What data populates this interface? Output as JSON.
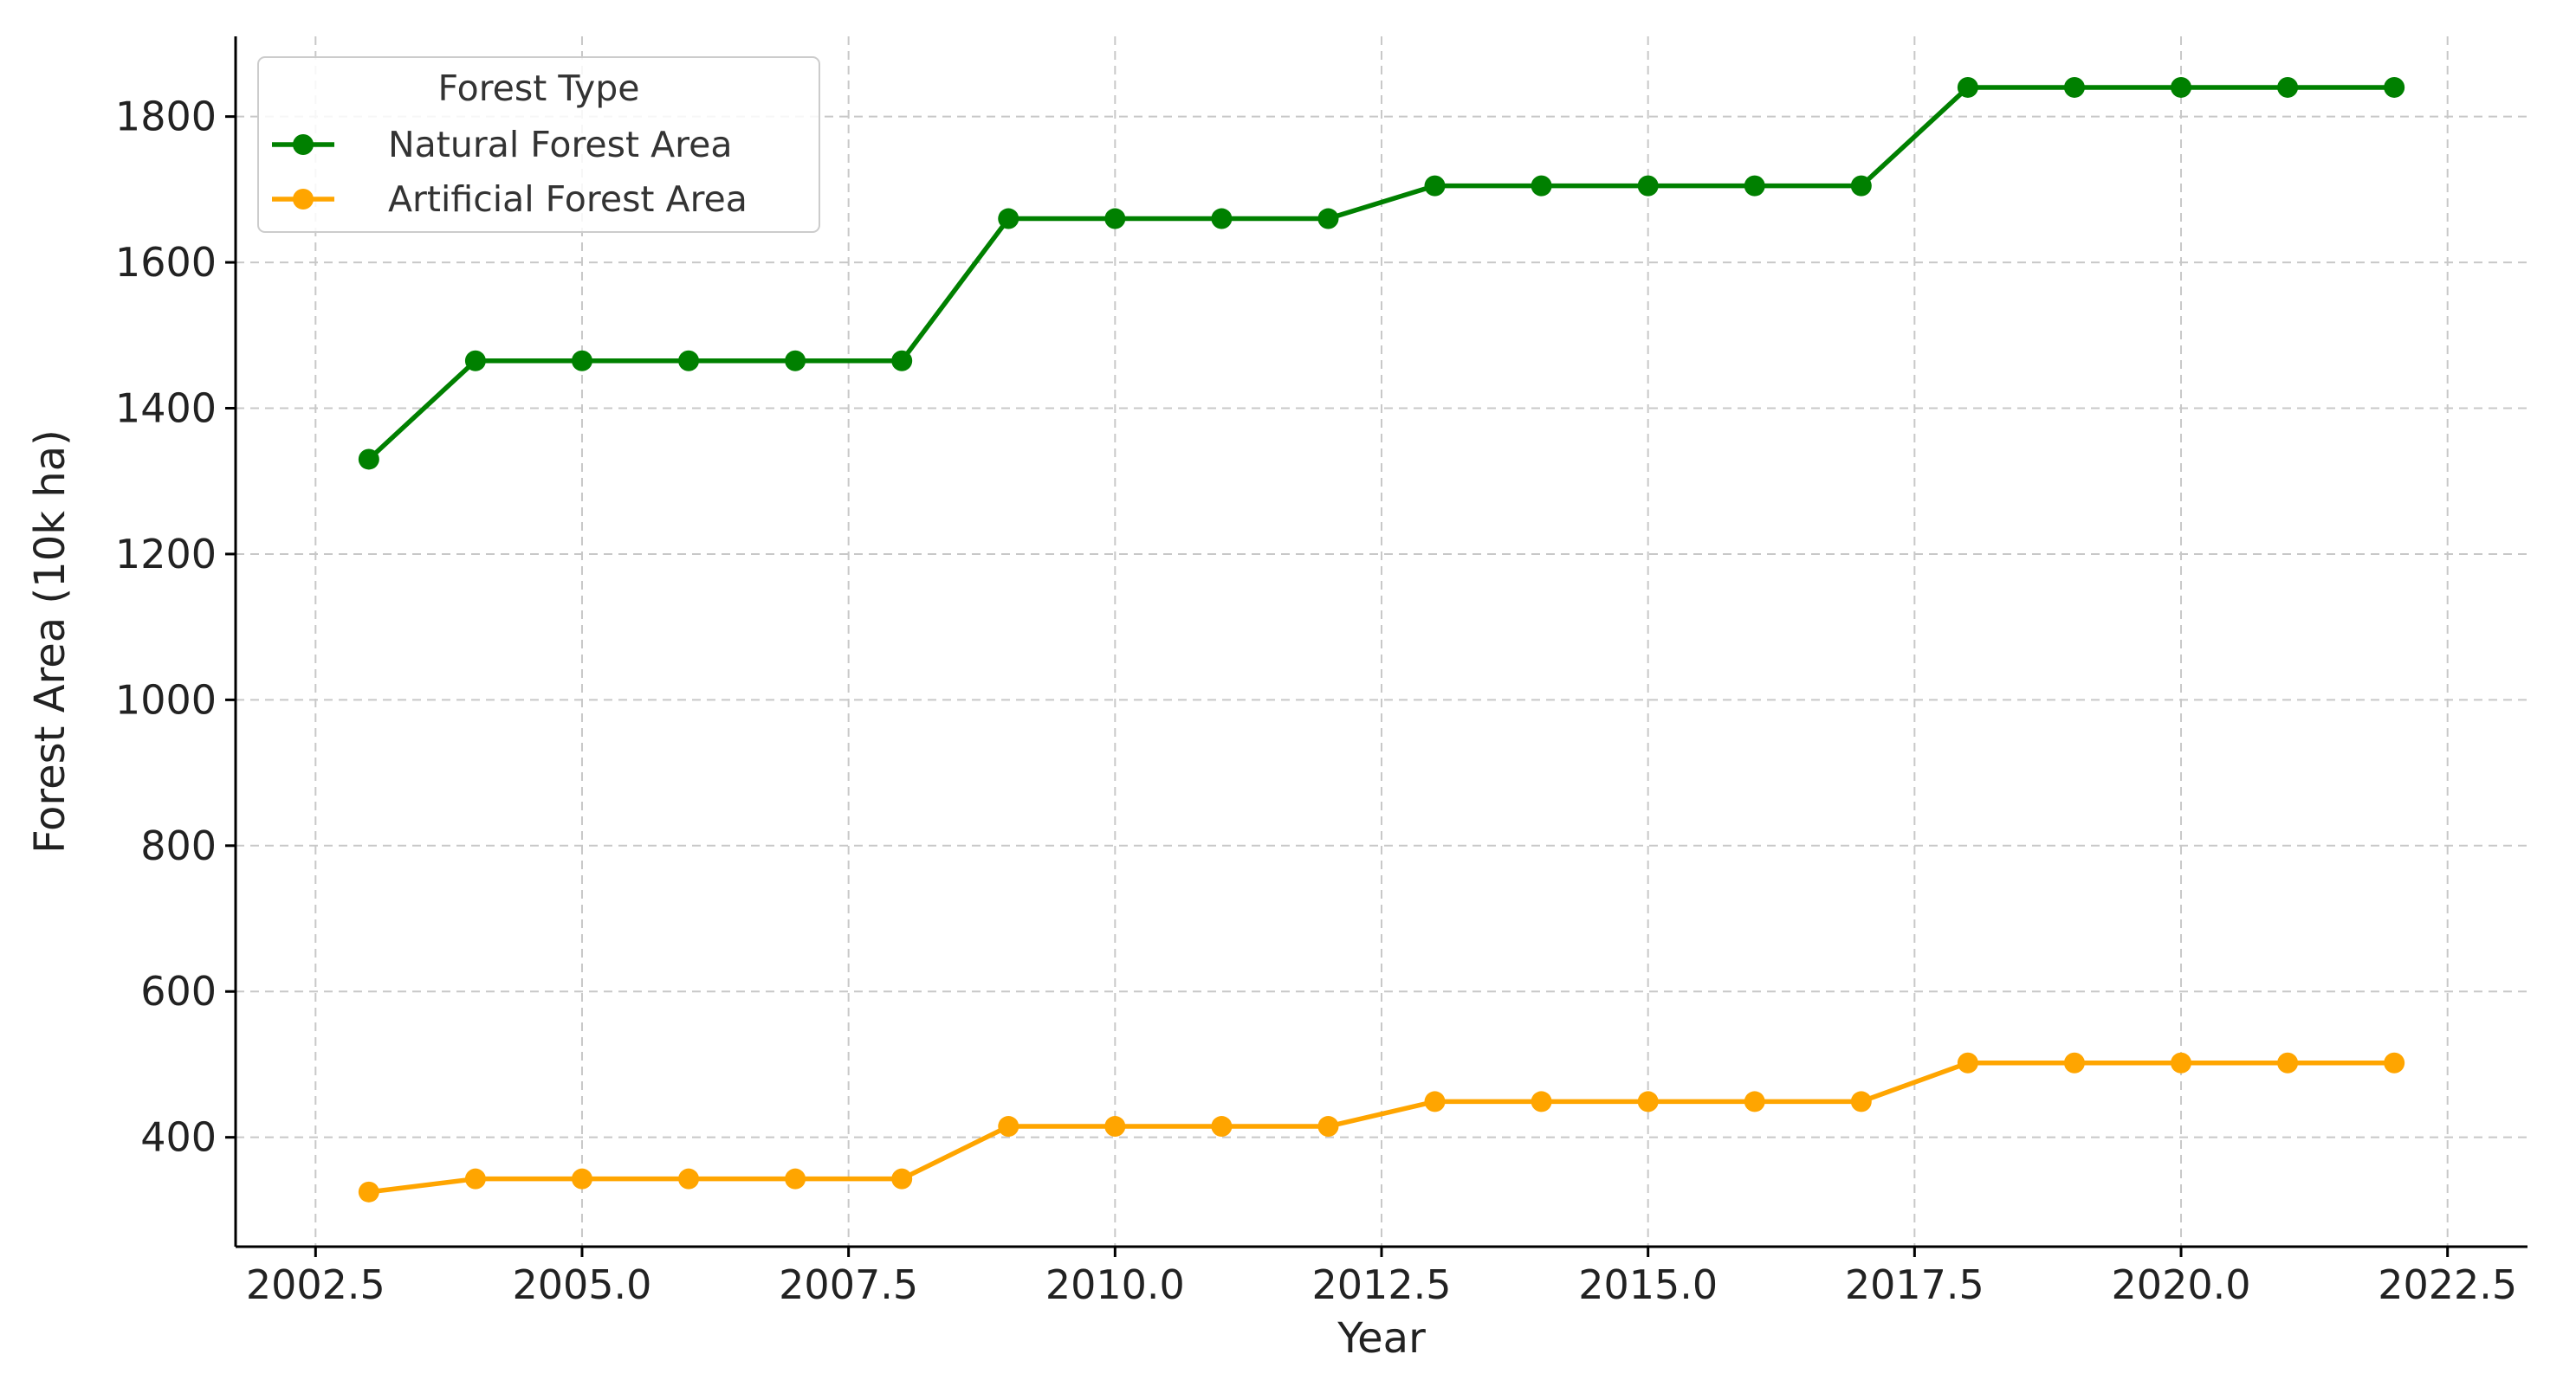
{
  "chart_data": {
    "type": "line",
    "title": "",
    "xlabel": "Year",
    "ylabel": "Forest Area (10k ha)",
    "xlim": [
      2001.75,
      2023.25
    ],
    "ylim": [
      250,
      1910
    ],
    "x_ticks": [
      2002.5,
      2005.0,
      2007.5,
      2010.0,
      2012.5,
      2015.0,
      2017.5,
      2020.0,
      2022.5
    ],
    "x_tick_labels": [
      "2002.5",
      "2005.0",
      "2007.5",
      "2010.0",
      "2012.5",
      "2015.0",
      "2017.5",
      "2020.0",
      "2022.5"
    ],
    "y_ticks": [
      400,
      600,
      800,
      1000,
      1200,
      1400,
      1600,
      1800
    ],
    "y_tick_labels": [
      "400",
      "600",
      "800",
      "1000",
      "1200",
      "1400",
      "1600",
      "1800"
    ],
    "grid": true,
    "legend": {
      "title": "Forest Type",
      "placement": "top-left"
    },
    "x": [
      2003,
      2004,
      2005,
      2006,
      2007,
      2008,
      2009,
      2010,
      2011,
      2012,
      2013,
      2014,
      2015,
      2016,
      2017,
      2018,
      2019,
      2020,
      2021,
      2022
    ],
    "series": [
      {
        "name": "Natural Forest Area",
        "color": "#008000",
        "values": [
          1330,
          1465,
          1465,
          1465,
          1465,
          1465,
          1660,
          1660,
          1660,
          1660,
          1705,
          1705,
          1705,
          1705,
          1705,
          1840,
          1840,
          1840,
          1840,
          1840
        ]
      },
      {
        "name": "Artificial Forest Area",
        "color": "#FFA500",
        "values": [
          325,
          343,
          343,
          343,
          343,
          343,
          415,
          415,
          415,
          415,
          449,
          449,
          449,
          449,
          449,
          502,
          502,
          502,
          502,
          502
        ]
      }
    ]
  }
}
